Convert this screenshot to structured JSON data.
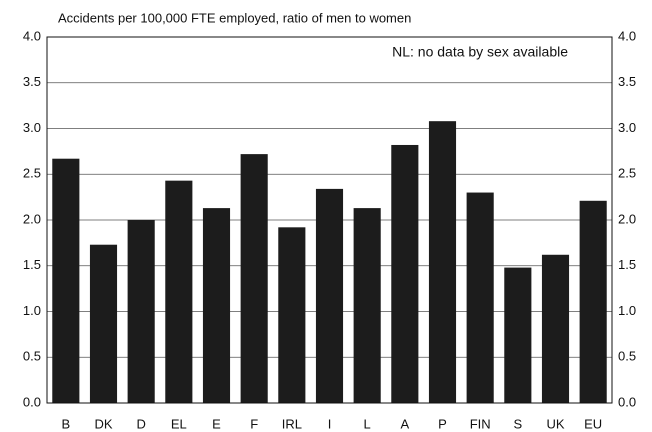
{
  "chart_data": {
    "type": "bar",
    "subtitle": "Accidents per 100,000 FTE employed, ratio of men to women",
    "annotation": "NL: no data by sex available",
    "categories": [
      "B",
      "DK",
      "D",
      "EL",
      "E",
      "F",
      "IRL",
      "I",
      "L",
      "A",
      "P",
      "FIN",
      "S",
      "UK",
      "EU"
    ],
    "values": [
      2.67,
      1.73,
      2.0,
      2.43,
      2.13,
      2.72,
      1.92,
      2.34,
      2.13,
      2.82,
      3.08,
      2.3,
      1.48,
      1.62,
      2.21
    ],
    "color": "#1c1c1c",
    "ylim": [
      0,
      4
    ],
    "yticks": [
      {
        "value": 0,
        "label": "0.0"
      },
      0.5,
      {
        "value": 1,
        "label": "1.0"
      },
      1.5,
      {
        "value": 2,
        "label": "2.0"
      },
      2.5,
      {
        "value": 3,
        "label": "3.0"
      },
      3.5,
      {
        "value": 4,
        "label": "4.0"
      }
    ],
    "grid": true
  }
}
